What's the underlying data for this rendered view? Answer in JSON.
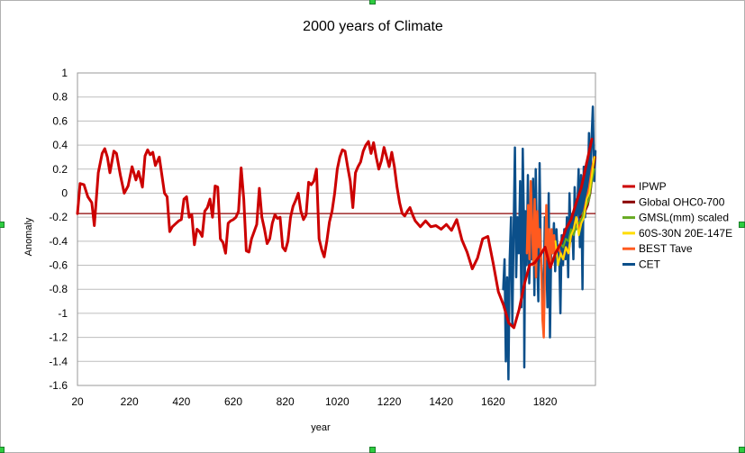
{
  "chart_data": {
    "type": "line",
    "title": "2000 years of Climate",
    "xlabel": "year",
    "ylabel": "Anomaly",
    "xlim": [
      20,
      2014
    ],
    "ylim": [
      -1.6,
      1
    ],
    "xticks": [
      20,
      220,
      420,
      620,
      820,
      1020,
      1220,
      1420,
      1620,
      1820
    ],
    "yticks": [
      1,
      0.8,
      0.6,
      0.4,
      0.2,
      0,
      -0.2,
      -0.4,
      -0.6,
      -0.8,
      -1,
      -1.2,
      -1.4,
      -1.6
    ],
    "ytick_labels": [
      "1",
      "0.8",
      "0.6",
      "0.4",
      "0.2",
      "0",
      "-0.2",
      "-0.4",
      "-0.6",
      "-0.8",
      "-1",
      "-1.2",
      "-1.4",
      "-1.6"
    ],
    "grid": true,
    "legend_position": "right",
    "reference_line": {
      "y": -0.17,
      "color": "#8b0000"
    },
    "series": [
      {
        "name": "IPWP",
        "color": "#cc0000",
        "width": 3,
        "x": [
          20,
          30,
          45,
          60,
          75,
          85,
          100,
          115,
          125,
          135,
          145,
          160,
          170,
          185,
          200,
          215,
          230,
          245,
          255,
          270,
          280,
          290,
          300,
          310,
          320,
          335,
          345,
          355,
          365,
          375,
          385,
          400,
          410,
          420,
          430,
          440,
          450,
          460,
          470,
          480,
          490,
          500,
          510,
          520,
          530,
          540,
          550,
          560,
          570,
          580,
          590,
          600,
          610,
          620,
          630,
          640,
          650,
          660,
          670,
          680,
          690,
          700,
          710,
          720,
          730,
          740,
          750,
          760,
          770,
          780,
          790,
          800,
          810,
          820,
          830,
          840,
          850,
          860,
          870,
          880,
          890,
          900,
          910,
          920,
          930,
          940,
          950,
          960,
          970,
          980,
          990,
          1000,
          1010,
          1020,
          1030,
          1040,
          1050,
          1060,
          1070,
          1080,
          1090,
          1100,
          1110,
          1120,
          1130,
          1140,
          1150,
          1160,
          1170,
          1180,
          1190,
          1200,
          1210,
          1220,
          1230,
          1240,
          1250,
          1260,
          1270,
          1280,
          1290,
          1300,
          1310,
          1320,
          1340,
          1360,
          1380,
          1400,
          1420,
          1440,
          1460,
          1480,
          1500,
          1520,
          1540,
          1560,
          1580,
          1600,
          1620,
          1640,
          1660,
          1680,
          1700,
          1720,
          1740,
          1760,
          1780,
          1800,
          1820,
          1840,
          1860,
          1880,
          1900,
          1920,
          1940,
          1960,
          1980,
          2000
        ],
        "y": [
          -0.17,
          0.08,
          0.07,
          -0.03,
          -0.08,
          -0.27,
          0.17,
          0.33,
          0.37,
          0.3,
          0.17,
          0.35,
          0.33,
          0.15,
          0.0,
          0.06,
          0.22,
          0.11,
          0.18,
          0.05,
          0.31,
          0.36,
          0.32,
          0.34,
          0.23,
          0.3,
          0.15,
          0.0,
          -0.03,
          -0.32,
          -0.28,
          -0.25,
          -0.23,
          -0.22,
          -0.05,
          -0.03,
          -0.2,
          -0.18,
          -0.43,
          -0.3,
          -0.32,
          -0.36,
          -0.15,
          -0.12,
          -0.05,
          -0.2,
          0.06,
          0.05,
          -0.38,
          -0.41,
          -0.5,
          -0.25,
          -0.23,
          -0.22,
          -0.2,
          -0.15,
          0.21,
          -0.05,
          -0.48,
          -0.49,
          -0.38,
          -0.32,
          -0.26,
          0.04,
          -0.2,
          -0.3,
          -0.42,
          -0.38,
          -0.25,
          -0.18,
          -0.21,
          -0.2,
          -0.45,
          -0.48,
          -0.4,
          -0.2,
          -0.11,
          -0.06,
          0.0,
          -0.15,
          -0.22,
          -0.18,
          0.09,
          0.07,
          0.1,
          0.2,
          -0.38,
          -0.47,
          -0.53,
          -0.4,
          -0.24,
          -0.15,
          0.0,
          0.2,
          0.3,
          0.36,
          0.35,
          0.22,
          0.1,
          -0.12,
          0.17,
          0.22,
          0.26,
          0.35,
          0.4,
          0.43,
          0.33,
          0.42,
          0.3,
          0.2,
          0.27,
          0.38,
          0.3,
          0.22,
          0.34,
          0.22,
          0.05,
          -0.08,
          -0.17,
          -0.19,
          -0.15,
          -0.12,
          -0.18,
          -0.23,
          -0.28,
          -0.23,
          -0.28,
          -0.27,
          -0.3,
          -0.26,
          -0.31,
          -0.22,
          -0.39,
          -0.49,
          -0.63,
          -0.54,
          -0.38,
          -0.36,
          -0.58,
          -0.82,
          -0.93,
          -1.08,
          -1.12,
          -0.97,
          -0.76,
          -0.6,
          -0.58,
          -0.52,
          -0.45,
          -0.62,
          -0.5,
          -0.42,
          -0.3,
          -0.22,
          -0.08,
          0.05,
          0.25,
          0.45
        ]
      },
      {
        "name": "Global OHC0-700",
        "color": "#8b0000",
        "width": 2,
        "x": [
          1955,
          1965,
          1975,
          1985,
          1995,
          2005,
          2014
        ],
        "y": [
          -0.2,
          -0.18,
          -0.15,
          -0.1,
          0.0,
          0.18,
          0.3
        ]
      },
      {
        "name": "GMSL(mm) scaled",
        "color": "#66aa22",
        "width": 2,
        "x": [
          1880,
          1890,
          1900,
          1910,
          1920,
          1930,
          1940,
          1950,
          1960,
          1970,
          1980,
          1990,
          2000,
          2010
        ],
        "y": [
          -0.42,
          -0.45,
          -0.38,
          -0.4,
          -0.3,
          -0.35,
          -0.28,
          -0.25,
          -0.22,
          -0.15,
          -0.1,
          -0.05,
          0.1,
          0.2
        ]
      },
      {
        "name": "60S-30N 20E-147E",
        "color": "#ffdd00",
        "width": 2,
        "x": [
          1860,
          1870,
          1880,
          1890,
          1900,
          1910,
          1920,
          1930,
          1940,
          1950,
          1960,
          1970,
          1980,
          1990,
          2000,
          2010
        ],
        "y": [
          -0.4,
          -0.6,
          -0.5,
          -0.55,
          -0.45,
          -0.5,
          -0.35,
          -0.3,
          -0.2,
          -0.35,
          -0.25,
          -0.2,
          -0.05,
          0.0,
          0.15,
          0.3
        ]
      },
      {
        "name": "BEST Tave",
        "color": "#ff5a1f",
        "width": 2.5,
        "x": [
          1750,
          1755,
          1760,
          1765,
          1770,
          1775,
          1780,
          1785,
          1790,
          1795,
          1800,
          1805,
          1810,
          1815,
          1820,
          1825,
          1830,
          1835,
          1840,
          1845,
          1850,
          1855,
          1860,
          1870,
          1880,
          1890,
          1900,
          1910,
          1920,
          1930,
          1940,
          1950,
          1960,
          1970,
          1980,
          1990,
          2000,
          2010
        ],
        "y": [
          -0.5,
          -0.1,
          -0.55,
          0.1,
          -0.25,
          -0.6,
          -0.05,
          -0.7,
          -0.15,
          -0.45,
          -0.3,
          -0.55,
          -1.05,
          -1.2,
          -0.55,
          -0.1,
          -0.55,
          -0.3,
          -0.6,
          -0.3,
          -0.5,
          -0.35,
          -0.5,
          -0.45,
          -0.5,
          -0.55,
          -0.45,
          -0.5,
          -0.35,
          -0.3,
          -0.2,
          -0.3,
          -0.2,
          -0.15,
          -0.05,
          0.05,
          0.2,
          0.3
        ]
      },
      {
        "name": "CET",
        "color": "#0b4f8a",
        "width": 2.5,
        "x": [
          1659,
          1664,
          1669,
          1674,
          1679,
          1684,
          1689,
          1694,
          1699,
          1704,
          1709,
          1714,
          1719,
          1724,
          1729,
          1734,
          1739,
          1740,
          1744,
          1749,
          1754,
          1759,
          1764,
          1769,
          1774,
          1779,
          1784,
          1789,
          1794,
          1799,
          1804,
          1809,
          1814,
          1819,
          1824,
          1829,
          1834,
          1839,
          1844,
          1849,
          1854,
          1859,
          1864,
          1869,
          1874,
          1879,
          1884,
          1889,
          1894,
          1899,
          1904,
          1909,
          1914,
          1919,
          1924,
          1929,
          1934,
          1939,
          1944,
          1949,
          1954,
          1959,
          1964,
          1969,
          1974,
          1979,
          1984,
          1989,
          1994,
          1999,
          2004,
          2009,
          2014
        ],
        "y": [
          -0.8,
          -0.55,
          -1.4,
          -0.7,
          -1.55,
          -0.55,
          -0.2,
          -1.1,
          -0.3,
          0.38,
          -0.7,
          -0.2,
          -0.5,
          0.1,
          -0.95,
          0.37,
          -0.3,
          -1.45,
          -0.15,
          -0.6,
          0.15,
          -0.75,
          -0.35,
          -0.55,
          0.12,
          -0.85,
          0.2,
          -0.5,
          -0.9,
          0.25,
          -0.55,
          -0.75,
          -0.9,
          -0.2,
          -0.45,
          -0.95,
          0.0,
          -1.2,
          -0.4,
          -0.5,
          -0.25,
          -0.65,
          -0.3,
          -0.55,
          -0.45,
          -1.0,
          -0.35,
          -0.6,
          -0.3,
          -0.55,
          -0.2,
          -0.7,
          0.0,
          -0.4,
          -0.2,
          -0.55,
          0.05,
          -0.3,
          -0.15,
          0.2,
          -0.45,
          0.15,
          -0.8,
          0.22,
          -0.2,
          0.25,
          -0.1,
          0.5,
          0.1,
          0.45,
          0.72,
          0.1,
          0.35
        ]
      }
    ]
  }
}
